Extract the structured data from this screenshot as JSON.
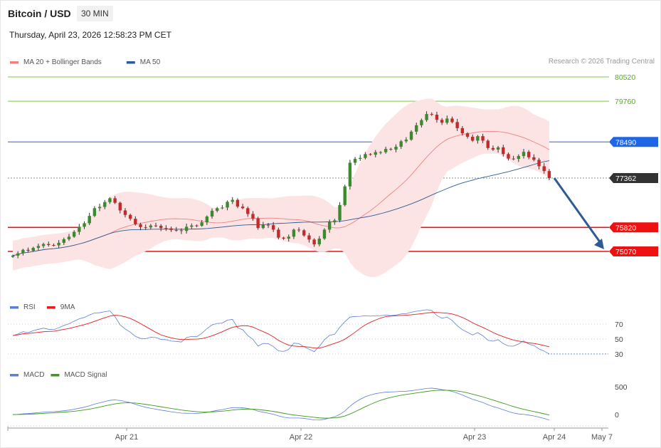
{
  "header": {
    "title": "Bitcoin / USD",
    "timeframe": "30 MIN",
    "datetime": "Thursday, April 23, 2026 12:58:23 PM CET",
    "copyright": "Research © 2026 Trading Central"
  },
  "legends": {
    "price": [
      {
        "label": "MA 20 + Bollinger Bands",
        "color": "#f08080"
      },
      {
        "label": "MA 50",
        "color": "#2f5a94"
      }
    ],
    "rsi": [
      {
        "label": "RSI",
        "color": "#5b7fd6"
      },
      {
        "label": "9MA",
        "color": "#e02020"
      }
    ],
    "macd": [
      {
        "label": "MACD",
        "color": "#5b7fd6"
      },
      {
        "label": "MACD Signal",
        "color": "#3d9a1a"
      }
    ]
  },
  "chart_data": [
    {
      "type": "candlestick",
      "title": "Bitcoin / USD",
      "timeframe": "30 MIN",
      "ylim": [
        73500,
        80800
      ],
      "x_ticks": [
        "Apr 21",
        "Apr 22",
        "Apr 23",
        "Apr 24",
        "May 7"
      ],
      "levels": [
        {
          "value": 80520,
          "label": "80520",
          "color": "#7cc44a",
          "style": "line"
        },
        {
          "value": 79760,
          "label": "79760",
          "color": "#7cc44a",
          "style": "line"
        },
        {
          "value": 78490,
          "label": "78490",
          "color": "#1f66e5",
          "style": "tag"
        },
        {
          "value": 77362,
          "label": "77362",
          "color": "#333333",
          "style": "tag"
        },
        {
          "value": 75820,
          "label": "75820",
          "color": "#ee1111",
          "style": "tag"
        },
        {
          "value": 75070,
          "label": "75070",
          "color": "#ee1111",
          "style": "tag"
        }
      ],
      "close": [
        74940,
        75010,
        75120,
        75090,
        75180,
        75240,
        75300,
        75270,
        75260,
        75340,
        75450,
        75530,
        75680,
        75840,
        75950,
        76180,
        76420,
        76460,
        76610,
        76730,
        76590,
        76350,
        76210,
        76090,
        75920,
        75830,
        75820,
        75880,
        75870,
        75800,
        75790,
        75740,
        75730,
        75710,
        75840,
        75880,
        75870,
        75980,
        76160,
        76340,
        76420,
        76440,
        76620,
        76680,
        76470,
        76420,
        76240,
        76100,
        75800,
        75900,
        75890,
        75750,
        75500,
        75470,
        75530,
        75750,
        75730,
        75570,
        75440,
        75290,
        75470,
        75750,
        75980,
        76040,
        76520,
        77100,
        77840,
        77960,
        77990,
        78110,
        78090,
        78170,
        78170,
        78270,
        78250,
        78340,
        78510,
        78560,
        78810,
        79010,
        79170,
        79360,
        79340,
        79180,
        79090,
        79220,
        79110,
        78920,
        78760,
        78650,
        78530,
        78670,
        78530,
        78300,
        78250,
        78320,
        78110,
        77970,
        77960,
        78050,
        78180,
        78010,
        77930,
        77730,
        77580,
        77360
      ],
      "annotations": [
        {
          "type": "arrow",
          "from_value": 77362,
          "to_value": 75070,
          "color": "#2f5a94"
        }
      ]
    },
    {
      "type": "line",
      "name": "RSI",
      "y_ticks": [
        70,
        50,
        30
      ],
      "series": [
        {
          "name": "RSI"
        },
        {
          "name": "9MA"
        }
      ]
    },
    {
      "type": "line",
      "name": "MACD",
      "y_ticks": [
        500,
        0
      ],
      "series": [
        {
          "name": "MACD"
        },
        {
          "name": "MACD Signal"
        }
      ]
    }
  ]
}
